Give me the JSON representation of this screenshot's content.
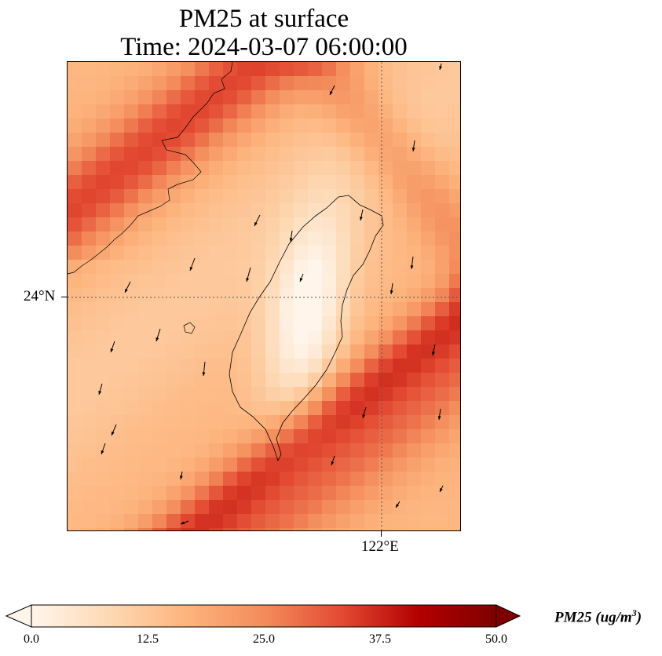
{
  "title": {
    "line1": "PM25 at surface",
    "line2": "Time: 2024-03-07 06:00:00"
  },
  "axes": {
    "lat_tick": "24°N",
    "lon_tick": "122°E"
  },
  "colorbar": {
    "label_prefix": "PM25 (ug/m",
    "label_exp": "3",
    "label_suffix": ")",
    "ticks": [
      "0.0",
      "12.5",
      "25.0",
      "37.5",
      "50.0"
    ],
    "range": [
      0,
      50
    ],
    "colormap": [
      "#fff5eb",
      "#fdd9b4",
      "#fdb47d",
      "#f38c5b",
      "#e34a33",
      "#b30000",
      "#7f0000"
    ],
    "extend": "both"
  },
  "chart_data": {
    "type": "heatmap",
    "title": "PM25 at surface\nTime: 2024-03-07 06:00:00",
    "variable": "PM25",
    "units": "ug/m3",
    "vmin": 0,
    "vmax": 50,
    "lat_ticks": [
      "24°N"
    ],
    "lon_ticks": [
      "122°E"
    ],
    "grid": "dotted graticule",
    "overlays": [
      "coastlines",
      "wind vectors"
    ]
  }
}
